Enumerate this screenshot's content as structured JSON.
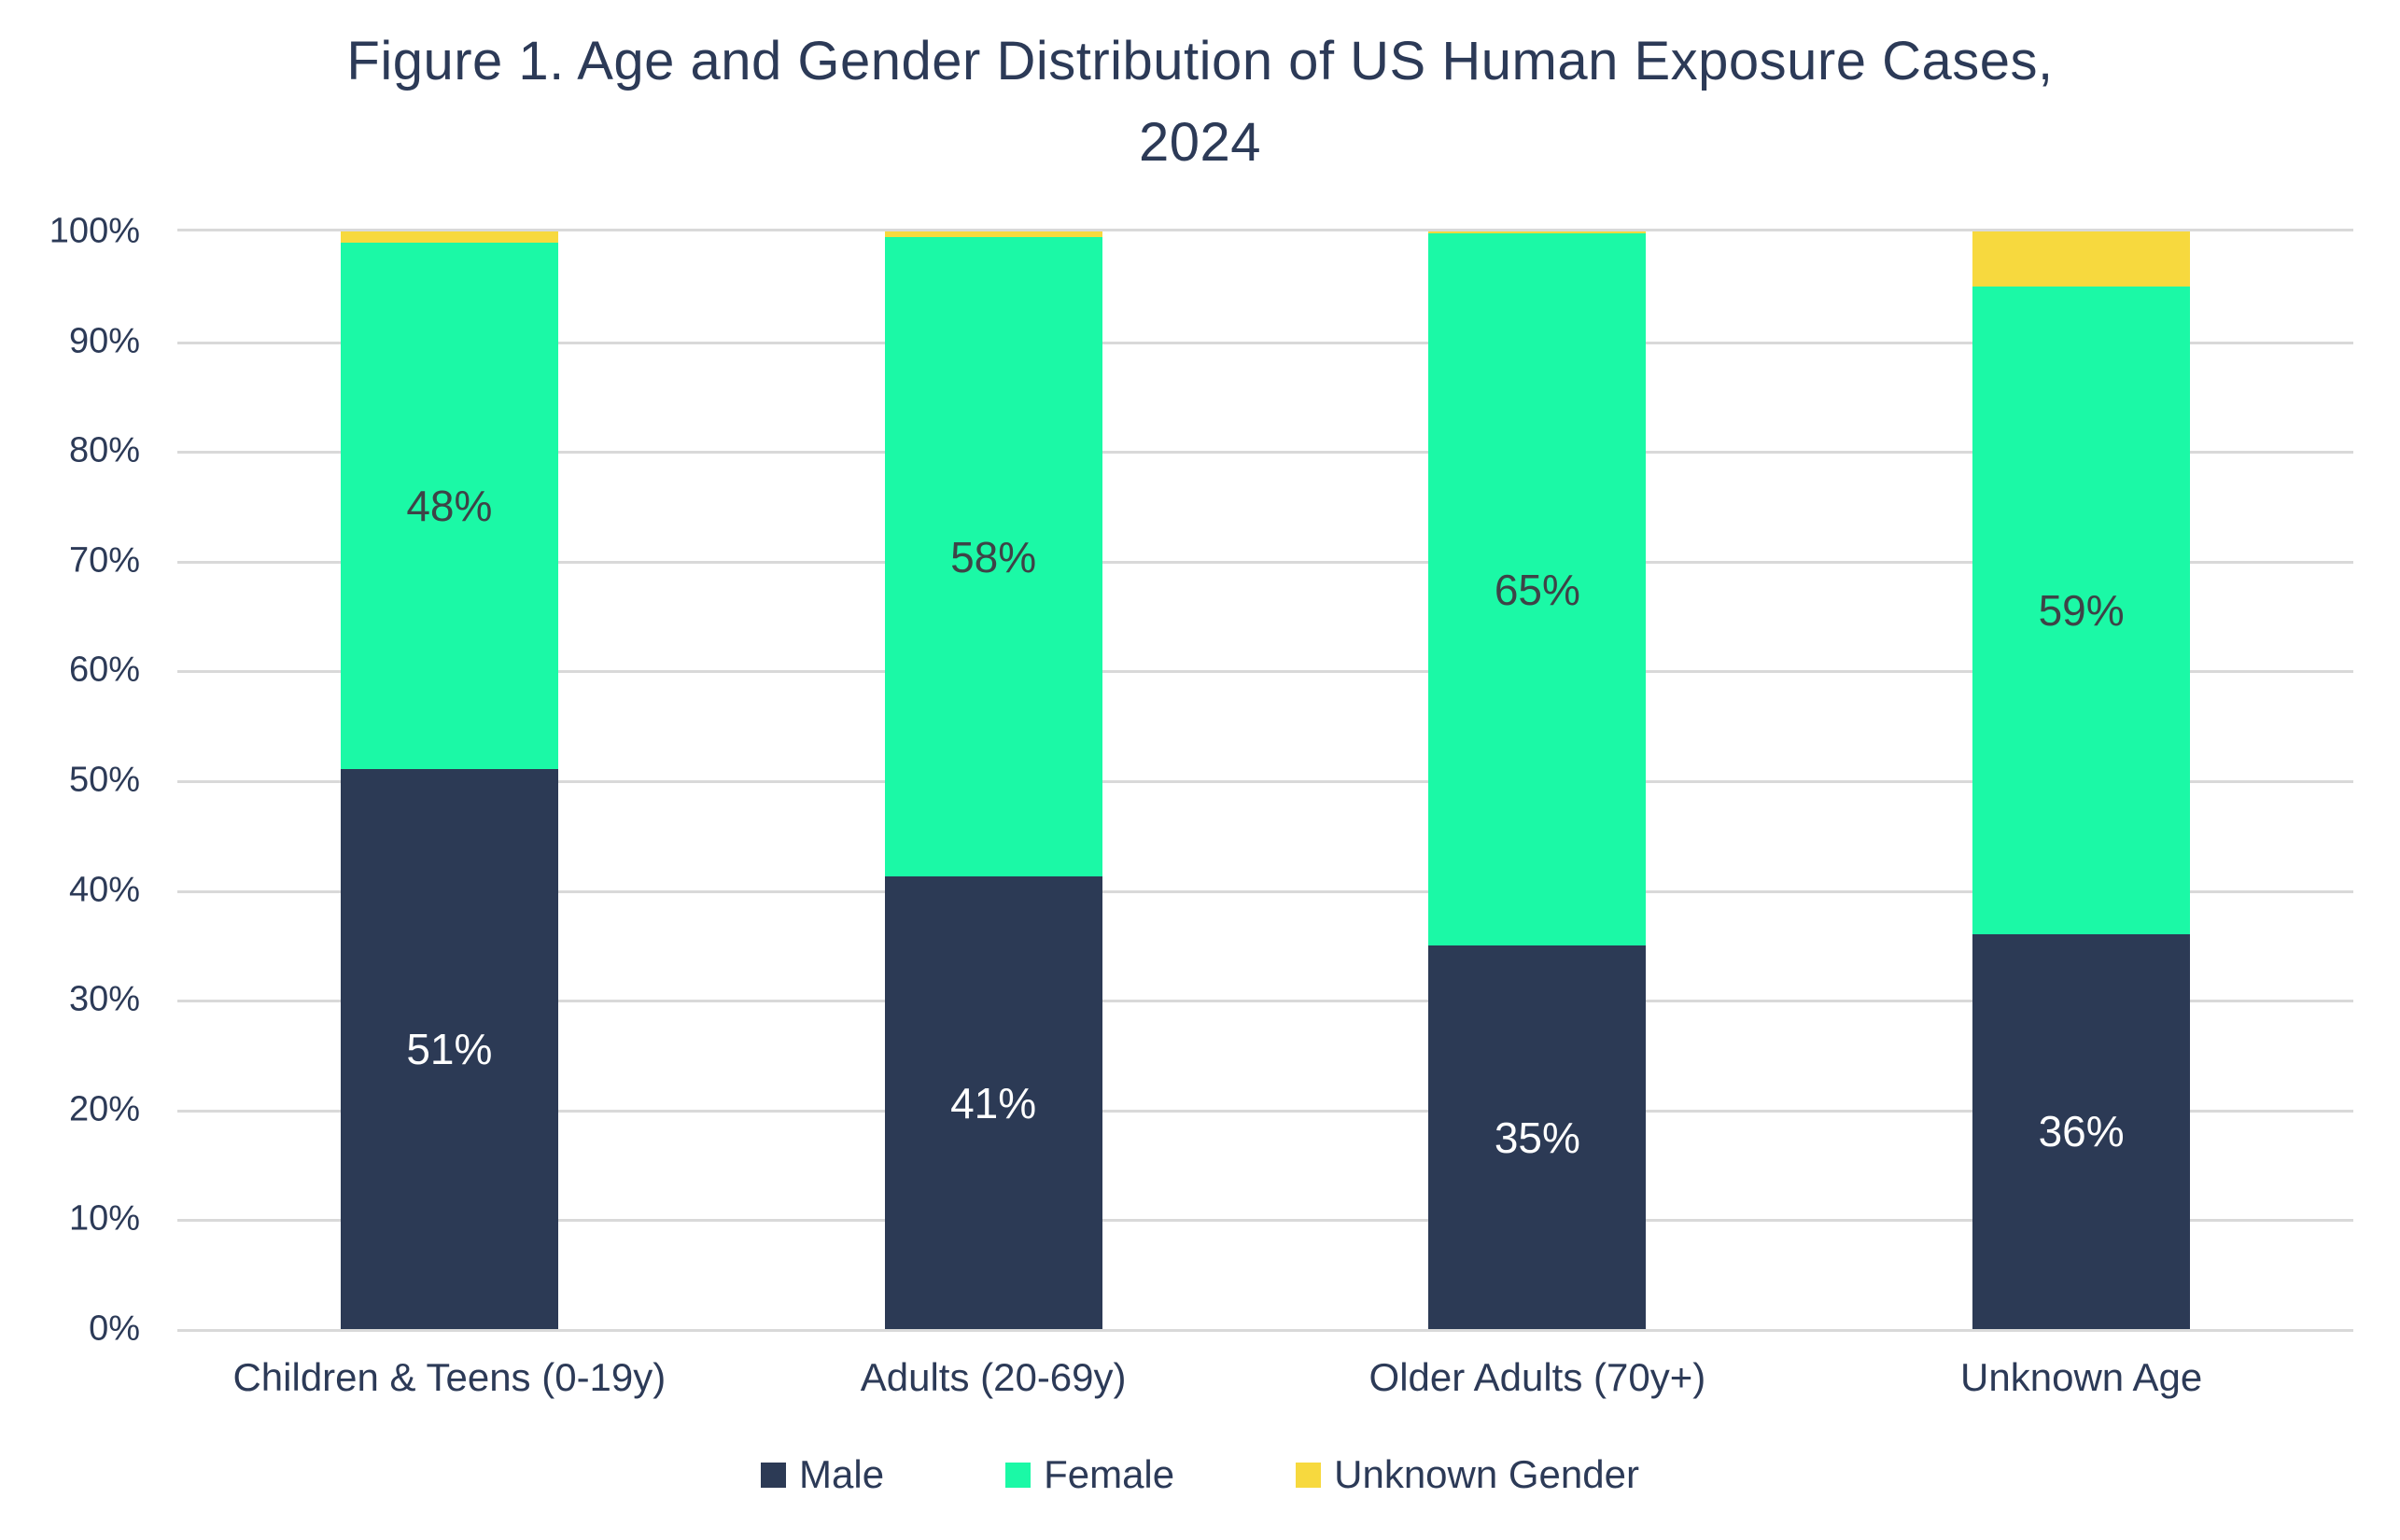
{
  "figure": {
    "title_lines": [
      "Figure 1. Age and Gender Distribution of US Human Exposure Cases,",
      "2024"
    ]
  },
  "chart_data": {
    "type": "bar",
    "subtype": "stacked-100-percent",
    "title": "Figure 1. Age and Gender Distribution of US Human Exposure Cases, 2024",
    "categories": [
      "Children & Teens (0-19y)",
      "Adults (20-69y)",
      "Older Adults (70y+)",
      "Unknown Age"
    ],
    "series": [
      {
        "name": "Male",
        "values": [
          51,
          41,
          35,
          36
        ],
        "labels": [
          "51%",
          "41%",
          "35%",
          "36%"
        ],
        "color": "#2C3A55",
        "label_color": "#FFFFFF"
      },
      {
        "name": "Female",
        "values": [
          48,
          58,
          65,
          59
        ],
        "labels": [
          "48%",
          "58%",
          "65%",
          "59%"
        ],
        "color": "#1BF9A6",
        "label_color": "#3E4347"
      },
      {
        "name": "Unknown Gender",
        "values": [
          1,
          0.5,
          0.2,
          5
        ],
        "labels": [
          "",
          "",
          "",
          ""
        ],
        "color": "#F7D93E",
        "label_color": ""
      }
    ],
    "y_ticks": [
      "0%",
      "10%",
      "20%",
      "30%",
      "40%",
      "50%",
      "60%",
      "70%",
      "80%",
      "90%",
      "100%"
    ],
    "ylim": [
      0,
      100
    ],
    "grid": true,
    "gridline_color": "#D9D9D9",
    "axis_text_color": "#2C3A57",
    "legend_position": "bottom",
    "legend": [
      "Male",
      "Female",
      "Unknown Gender"
    ]
  }
}
